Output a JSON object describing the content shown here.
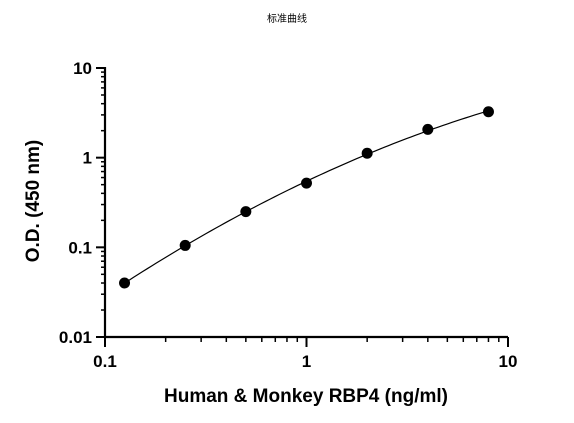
{
  "chart_data": {
    "type": "scatter",
    "title": "标准曲线",
    "xlabel": "Human & Monkey RBP4 (ng/ml)",
    "ylabel": "O.D. (450 nm)",
    "xscale": "log",
    "yscale": "log",
    "xlim": [
      0.1,
      10
    ],
    "ylim": [
      0.01,
      10
    ],
    "x_ticks": [
      "0.1",
      "1",
      "10"
    ],
    "y_ticks": [
      "0.01",
      "0.1",
      "1",
      "10"
    ],
    "grid": false,
    "legend": "none",
    "fit_curve": true,
    "marker_color": "#000000",
    "line_color": "#000000",
    "series": [
      {
        "x": [
          0.125,
          0.25,
          0.5,
          1,
          2,
          4,
          8
        ],
        "y": [
          0.04,
          0.105,
          0.25,
          0.52,
          1.12,
          2.07,
          3.25
        ]
      }
    ]
  }
}
